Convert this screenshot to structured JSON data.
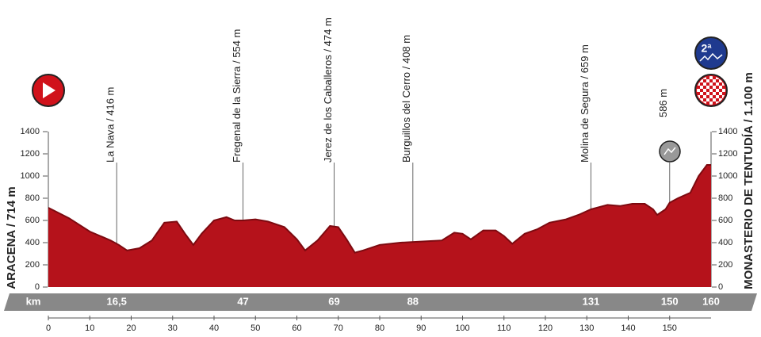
{
  "chart_data": {
    "type": "area",
    "start_label": "ARACENA / 714 m",
    "finish_label": "MONASTERIO DE TENTUDÍA / 1.100 m",
    "climb_category": "2ª",
    "km_label": "km",
    "color": "#b5121b",
    "x": [
      0,
      5,
      10,
      15,
      17,
      19,
      22,
      25,
      28,
      31,
      33,
      35,
      37,
      40,
      43,
      45,
      47,
      50,
      53,
      57,
      60,
      62,
      65,
      68,
      70,
      72,
      74,
      76,
      80,
      85,
      90,
      95,
      98,
      100,
      102,
      105,
      108,
      110,
      112,
      115,
      118,
      121,
      125,
      128,
      131,
      135,
      138,
      141,
      144,
      146,
      147,
      149,
      150,
      152,
      155,
      157,
      159,
      160
    ],
    "values": [
      714,
      620,
      500,
      420,
      380,
      330,
      350,
      420,
      580,
      590,
      480,
      380,
      480,
      600,
      630,
      600,
      600,
      610,
      590,
      540,
      430,
      330,
      420,
      550,
      540,
      430,
      310,
      330,
      380,
      400,
      410,
      420,
      490,
      480,
      430,
      510,
      510,
      460,
      390,
      480,
      520,
      580,
      610,
      650,
      700,
      740,
      730,
      750,
      750,
      700,
      650,
      700,
      760,
      800,
      850,
      1000,
      1100,
      1100
    ],
    "xlim": [
      0,
      160
    ],
    "ylim": [
      0,
      1400
    ],
    "xticks": [
      0,
      10,
      20,
      30,
      40,
      50,
      60,
      70,
      80,
      90,
      100,
      110,
      120,
      130,
      140,
      150
    ],
    "yticks": [
      0,
      200,
      400,
      600,
      800,
      1000,
      1200,
      1400
    ],
    "waypoints": [
      {
        "km": {
          "value": 16.5,
          "label": "16,5"
        },
        "name": "La Nava / 416 m"
      },
      {
        "km": 47,
        "name": "Fregenal de la Sierra / 554 m"
      },
      {
        "km": 69,
        "name": "Jerez de los Caballeros / 474 m"
      },
      {
        "km": 88,
        "name": "Burguillos del Cerro / 408 m"
      },
      {
        "km": 131,
        "name": "Molina de Segura / 659 m"
      },
      {
        "km": 150,
        "name": "586 m"
      },
      {
        "km": 160
      }
    ]
  }
}
